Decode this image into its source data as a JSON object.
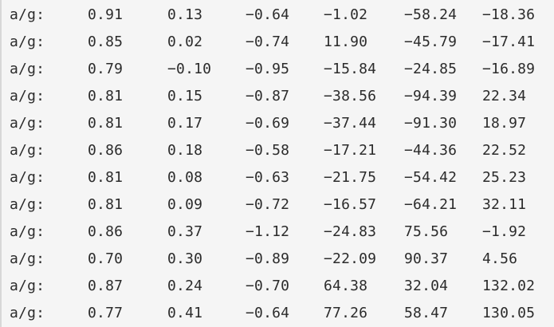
{
  "console": {
    "rows": [
      [
        "a/g:",
        "0.91",
        "0.13",
        "−0.64",
        "−1.02",
        "−58.24",
        "−18.36"
      ],
      [
        "a/g:",
        "0.85",
        "0.02",
        "−0.74",
        "11.90",
        "−45.79",
        "−17.41"
      ],
      [
        "a/g:",
        "0.79",
        "−0.10",
        "−0.95",
        "−15.84",
        "−24.85",
        "−16.89"
      ],
      [
        "a/g:",
        "0.81",
        "0.15",
        "−0.87",
        "−38.56",
        "−94.39",
        "22.34"
      ],
      [
        "a/g:",
        "0.81",
        "0.17",
        "−0.69",
        "−37.44",
        "−91.30",
        "18.97"
      ],
      [
        "a/g:",
        "0.86",
        "0.18",
        "−0.58",
        "−17.21",
        "−44.36",
        "22.52"
      ],
      [
        "a/g:",
        "0.81",
        "0.08",
        "−0.63",
        "−21.75",
        "−54.42",
        "25.23"
      ],
      [
        "a/g:",
        "0.81",
        "0.09",
        "−0.72",
        "−16.57",
        "−64.21",
        "32.11"
      ],
      [
        "a/g:",
        "0.86",
        "0.37",
        "−1.12",
        "−24.83",
        "75.56",
        "−1.92"
      ],
      [
        "a/g:",
        "0.70",
        "0.30",
        "−0.89",
        "−22.09",
        "90.37",
        "4.56"
      ],
      [
        "a/g:",
        "0.87",
        "0.24",
        "−0.70",
        "64.38",
        "32.04",
        "132.02"
      ],
      [
        "a/g:",
        "0.77",
        "0.41",
        "−0.64",
        "77.26",
        "58.47",
        "130.05"
      ]
    ]
  }
}
